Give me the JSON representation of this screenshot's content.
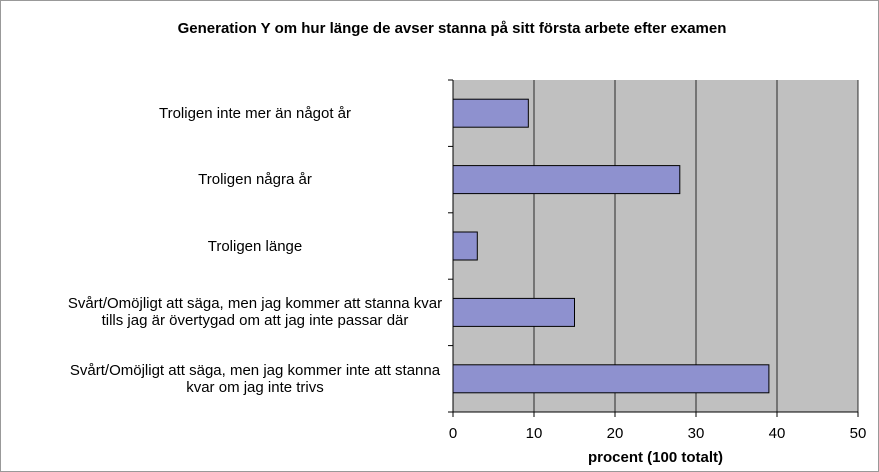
{
  "chart_data": {
    "type": "hbar",
    "title": "Generation Y om hur länge de avser stanna på sitt första arbete efter examen",
    "x_label": "procent (100 totalt)",
    "categories": [
      "Troligen inte mer än något år",
      "Troligen några år",
      "Troligen länge",
      "Svårt/Omöjligt att säga, men jag kommer att stanna kvar tills jag är övertygad om att jag inte passar där",
      "Svårt/Omöjligt att säga, men jag kommer inte att stanna kvar om jag inte trivs"
    ],
    "values": [
      9.3,
      28,
      3,
      15,
      39
    ],
    "color": "#8e91cf",
    "xlim": [
      0,
      50
    ],
    "xticks": [
      0,
      10,
      20,
      30,
      40,
      50
    ],
    "grid": true
  }
}
